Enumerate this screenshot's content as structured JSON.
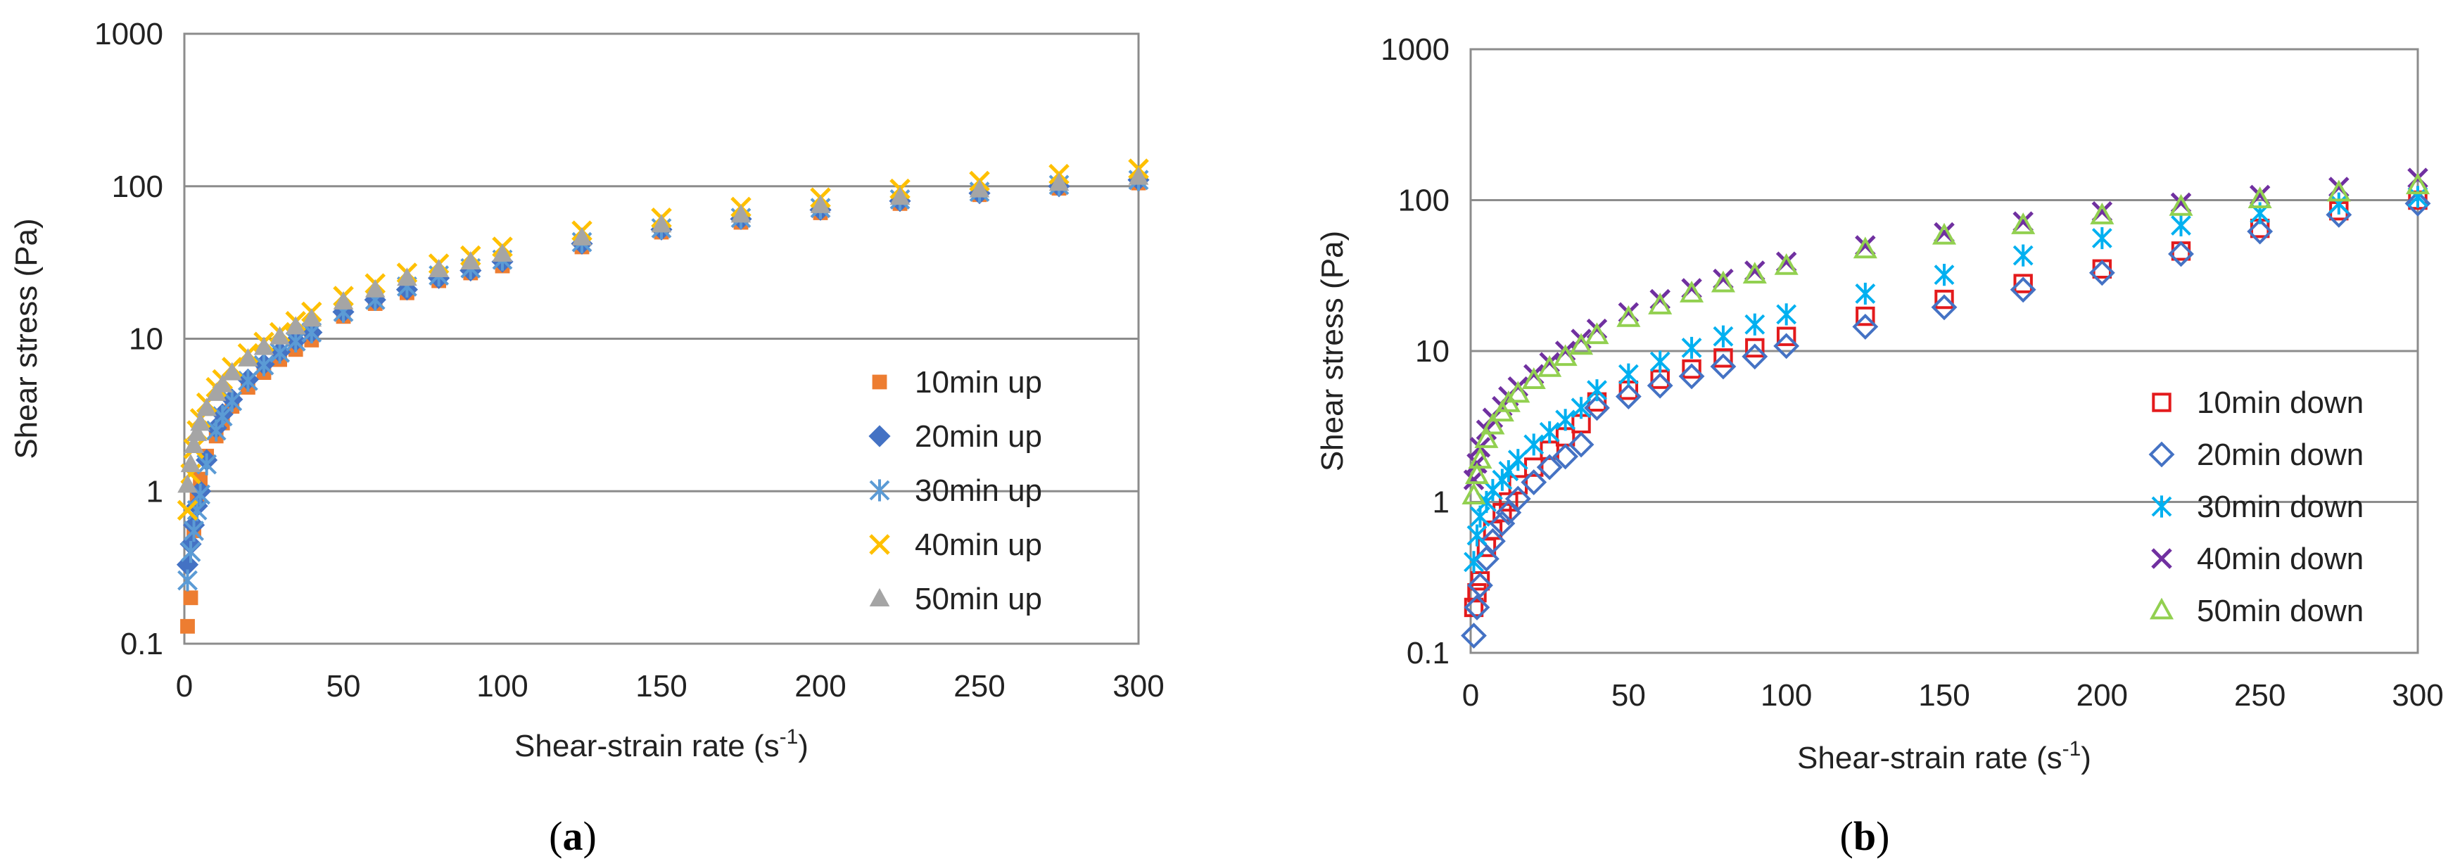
{
  "chart_data": [
    {
      "type": "scatter",
      "panel_label_prefix": "(",
      "panel_label": "a",
      "panel_label_suffix": ")",
      "xlabel_prefix": "Shear-strain rate (s",
      "xlabel_sup": "-1",
      "xlabel_suffix": ")",
      "ylabel": "Shear  stress (Pa)",
      "xlim": [
        0,
        300
      ],
      "ylim": [
        0.1,
        1000
      ],
      "yscale": "log",
      "x_ticks": [
        "0",
        "50",
        "100",
        "150",
        "200",
        "250",
        "300"
      ],
      "y_ticks": [
        "0.1",
        "1",
        "10",
        "100",
        "1000"
      ],
      "grid": true,
      "legend_position": "right",
      "x": [
        1,
        2,
        3,
        4,
        5,
        7,
        10,
        12,
        15,
        20,
        25,
        30,
        35,
        40,
        50,
        60,
        70,
        80,
        90,
        100,
        125,
        150,
        175,
        200,
        225,
        250,
        275,
        300
      ],
      "series": [
        {
          "name": "10min up",
          "marker": "square",
          "color": "#ED7D31",
          "values": [
            0.13,
            0.2,
            0.55,
            0.9,
            1.2,
            1.7,
            2.3,
            2.8,
            3.6,
            4.8,
            6.0,
            7.3,
            8.5,
            9.8,
            14.0,
            17.0,
            20.0,
            24.0,
            27.0,
            30.0,
            40.0,
            50.0,
            58.0,
            67.0,
            77.0,
            88.0,
            97.0,
            105.0
          ]
        },
        {
          "name": "20min up",
          "marker": "diamond",
          "color": "#4472C4",
          "values": [
            0.33,
            0.45,
            0.6,
            0.8,
            1.0,
            1.6,
            2.6,
            3.2,
            4.0,
            5.4,
            6.8,
            8.2,
            9.7,
            11.0,
            15.0,
            18.0,
            21.0,
            25.0,
            28.0,
            32.0,
            42.0,
            52.0,
            61.0,
            70.0,
            80.0,
            90.0,
            100.0,
            110.0
          ]
        },
        {
          "name": "30min up",
          "marker": "star",
          "color": "#5B9BD5",
          "values": [
            0.26,
            0.4,
            0.55,
            0.75,
            0.95,
            1.5,
            2.5,
            3.1,
            3.9,
            5.3,
            6.7,
            8.1,
            9.6,
            11.0,
            15.0,
            18.0,
            22.0,
            26.0,
            29.0,
            33.0,
            43.0,
            53.0,
            62.0,
            72.0,
            82.0,
            92.0,
            102.0,
            110.0
          ]
        },
        {
          "name": "40min up",
          "marker": "x",
          "color": "#FFC000",
          "values": [
            0.75,
            1.3,
            1.9,
            2.5,
            3.0,
            3.8,
            4.8,
            5.4,
            6.5,
            8.0,
            9.5,
            11.0,
            13.0,
            15.0,
            19.0,
            23.0,
            27.0,
            31.0,
            35.0,
            40.0,
            51.0,
            62.0,
            73.0,
            84.0,
            96.0,
            108.0,
            120.0,
            130.0
          ]
        },
        {
          "name": "50min up",
          "marker": "triangle",
          "color": "#A5A5A5",
          "values": [
            1.1,
            1.5,
            2.0,
            2.4,
            2.8,
            3.5,
            4.4,
            5.0,
            6.0,
            7.4,
            8.8,
            10.3,
            12.0,
            13.5,
            17.5,
            21.0,
            25.0,
            28.5,
            32.0,
            36.0,
            46.0,
            56.0,
            65.0,
            75.0,
            85.0,
            95.0,
            105.0,
            115.0
          ]
        }
      ]
    },
    {
      "type": "scatter",
      "panel_label_prefix": "(",
      "panel_label": "b",
      "panel_label_suffix": ")",
      "xlabel_prefix": "Shear-strain rate (s",
      "xlabel_sup": "-1",
      "xlabel_suffix": ")",
      "ylabel": "Shear  stress (Pa)",
      "xlim": [
        0,
        300
      ],
      "ylim": [
        0.1,
        1000
      ],
      "yscale": "log",
      "x_ticks": [
        "0",
        "50",
        "100",
        "150",
        "200",
        "250",
        "300"
      ],
      "y_ticks": [
        "0.1",
        "1",
        "10",
        "100",
        "1000"
      ],
      "grid": true,
      "legend_position": "right",
      "x": [
        1,
        2,
        3,
        5,
        7,
        10,
        12,
        15,
        20,
        25,
        30,
        35,
        40,
        50,
        60,
        70,
        80,
        90,
        100,
        125,
        150,
        175,
        200,
        225,
        250,
        275,
        300
      ],
      "series": [
        {
          "name": "10min down",
          "marker": "square-open",
          "color": "#E31A1C",
          "values": [
            0.2,
            0.25,
            0.3,
            0.5,
            0.65,
            0.85,
            1.0,
            1.3,
            1.7,
            2.2,
            2.7,
            3.3,
            4.6,
            5.5,
            6.5,
            7.6,
            9.0,
            10.5,
            12.5,
            17.0,
            22.0,
            28.0,
            35.0,
            46.0,
            65.0,
            85.0,
            100.0
          ]
        },
        {
          "name": "20min down",
          "marker": "diamond-open",
          "color": "#4472C4",
          "values": [
            0.13,
            0.2,
            0.28,
            0.42,
            0.55,
            0.72,
            0.85,
            1.05,
            1.35,
            1.7,
            2.0,
            2.4,
            4.2,
            5.0,
            5.9,
            6.8,
            7.9,
            9.2,
            10.8,
            14.5,
            19.5,
            25.5,
            33.0,
            44.0,
            62.0,
            80.0,
            95.0
          ]
        },
        {
          "name": "30min down",
          "marker": "star",
          "color": "#00B0F0",
          "values": [
            0.4,
            0.6,
            0.8,
            1.0,
            1.2,
            1.4,
            1.6,
            1.9,
            2.4,
            2.9,
            3.5,
            4.2,
            5.5,
            7.0,
            8.5,
            10.5,
            12.5,
            15.0,
            17.5,
            24.0,
            32.0,
            43.0,
            56.0,
            68.0,
            82.0,
            95.0,
            105.0
          ]
        },
        {
          "name": "40min down",
          "marker": "x",
          "color": "#7030A0",
          "values": [
            1.4,
            1.8,
            2.3,
            3.0,
            3.6,
            4.3,
            5.0,
            5.8,
            7.0,
            8.4,
            10.0,
            12.0,
            14.0,
            18.0,
            22.0,
            26.0,
            30.0,
            34.0,
            39.0,
            50.0,
            61.0,
            72.0,
            84.0,
            96.0,
            108.0,
            122.0,
            140.0
          ]
        },
        {
          "name": "50min down",
          "marker": "triangle-open",
          "color": "#92D050",
          "values": [
            1.1,
            1.5,
            1.9,
            2.6,
            3.2,
            3.9,
            4.5,
            5.2,
            6.4,
            7.7,
            9.1,
            10.8,
            12.7,
            16.5,
            20.0,
            24.0,
            28.0,
            32.0,
            36.5,
            47.0,
            58.0,
            68.0,
            79.0,
            90.0,
            101.0,
            112.0,
            125.0
          ]
        }
      ]
    }
  ]
}
